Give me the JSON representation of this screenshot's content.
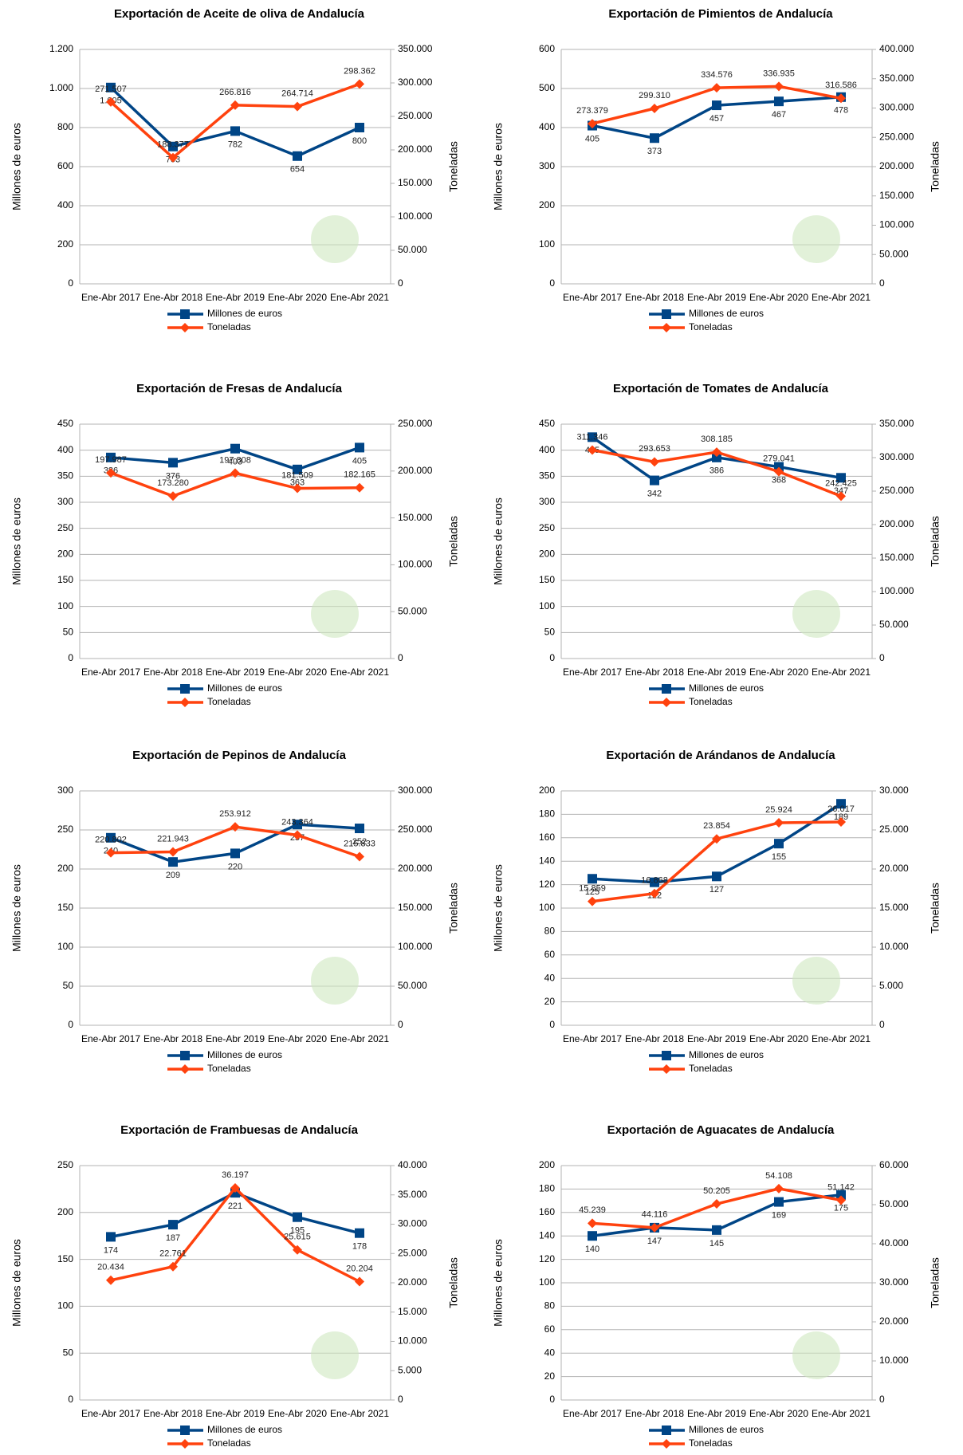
{
  "chart_data": [
    {
      "type": "line",
      "title": "Exportación de Aceite de oliva de Andalucía",
      "ylabel": "Millones de euros",
      "y2label": "Toneladas",
      "categories": [
        "Ene-Abr 2017",
        "Ene-Abr 2018",
        "Ene-Abr 2019",
        "Ene-Abr 2020",
        "Ene-Abr 2021"
      ],
      "ylim": [
        0,
        1200
      ],
      "yticks": [
        0,
        200,
        400,
        600,
        800,
        {
          "value": 1000,
          "label": "1.000"
        },
        {
          "value": 1200,
          "label": "1.200"
        }
      ],
      "y2lim": [
        0,
        350000
      ],
      "y2ticks": [
        0,
        {
          "value": 50000,
          "label": "50.000"
        },
        {
          "value": 100000,
          "label": "100.000"
        },
        {
          "value": 150000,
          "label": "150.000"
        },
        {
          "value": 200000,
          "label": "200.000"
        },
        {
          "value": 250000,
          "label": "250.000"
        },
        {
          "value": 300000,
          "label": "300.000"
        },
        {
          "value": 350000,
          "label": "350.000"
        }
      ],
      "series": [
        {
          "name": "Millones de euros",
          "color": "#004586",
          "values": [
            1005,
            703,
            782,
            654,
            800
          ],
          "value_labels": [
            "1.005",
            "703",
            "782",
            "654",
            "800"
          ]
        },
        {
          "name": "Toneladas",
          "color": "#ff420e",
          "axis": "y2",
          "values": [
            271507,
            188377,
            266816,
            264714,
            298362
          ],
          "value_labels": [
            "271.507",
            "188.377",
            "266.816",
            "264.714",
            "298.362"
          ]
        }
      ]
    },
    {
      "type": "line",
      "title": "Exportación de Pimientos de Andalucía",
      "ylabel": "Millones de euros",
      "y2label": "Toneladas",
      "categories": [
        "Ene-Abr 2017",
        "Ene-Abr 2018",
        "Ene-Abr 2019",
        "Ene-Abr 2020",
        "Ene-Abr 2021"
      ],
      "ylim": [
        0,
        600
      ],
      "yticks": [
        0,
        100,
        200,
        300,
        400,
        500,
        600
      ],
      "y2lim": [
        0,
        400000
      ],
      "y2ticks": [
        0,
        {
          "value": 50000,
          "label": "50.000"
        },
        {
          "value": 100000,
          "label": "100.000"
        },
        {
          "value": 150000,
          "label": "150.000"
        },
        {
          "value": 200000,
          "label": "200.000"
        },
        {
          "value": 250000,
          "label": "250.000"
        },
        {
          "value": 300000,
          "label": "300.000"
        },
        {
          "value": 350000,
          "label": "350.000"
        },
        {
          "value": 400000,
          "label": "400.000"
        }
      ],
      "series": [
        {
          "name": "Millones de euros",
          "color": "#004586",
          "values": [
            405,
            373,
            457,
            467,
            478
          ]
        },
        {
          "name": "Toneladas",
          "color": "#ff420e",
          "axis": "y2",
          "values": [
            273379,
            299310,
            334576,
            336935,
            316586
          ],
          "value_labels": [
            "273.379",
            "299.310",
            "334.576",
            "336.935",
            "316.586"
          ]
        }
      ]
    },
    {
      "type": "line",
      "title": "Exportación de Fresas de Andalucía",
      "ylabel": "Millones de euros",
      "y2label": "Toneladas",
      "categories": [
        "Ene-Abr 2017",
        "Ene-Abr 2018",
        "Ene-Abr 2019",
        "Ene-Abr 2020",
        "Ene-Abr 2021"
      ],
      "ylim": [
        0,
        450
      ],
      "yticks": [
        0,
        50,
        100,
        150,
        200,
        250,
        300,
        350,
        400,
        450
      ],
      "y2lim": [
        0,
        250000
      ],
      "y2ticks": [
        0,
        {
          "value": 50000,
          "label": "50.000"
        },
        {
          "value": 100000,
          "label": "100.000"
        },
        {
          "value": 150000,
          "label": "150.000"
        },
        {
          "value": 200000,
          "label": "200.000"
        },
        {
          "value": 250000,
          "label": "250.000"
        }
      ],
      "series": [
        {
          "name": "Millones de euros",
          "color": "#004586",
          "values": [
            386,
            376,
            403,
            363,
            405
          ]
        },
        {
          "name": "Toneladas",
          "color": "#ff420e",
          "axis": "y2",
          "values": [
            197987,
            173280,
            197808,
            181509,
            182165
          ],
          "value_labels": [
            "197.987",
            "173.280",
            "197.808",
            "181.509",
            "182.165"
          ]
        }
      ]
    },
    {
      "type": "line",
      "title": "Exportación de Tomates de Andalucía",
      "ylabel": "Millones de euros",
      "y2label": "Toneladas",
      "categories": [
        "Ene-Abr 2017",
        "Ene-Abr 2018",
        "Ene-Abr 2019",
        "Ene-Abr 2020",
        "Ene-Abr 2021"
      ],
      "ylim": [
        0,
        450
      ],
      "yticks": [
        0,
        50,
        100,
        150,
        200,
        250,
        300,
        350,
        400,
        450
      ],
      "y2lim": [
        0,
        350000
      ],
      "y2ticks": [
        0,
        {
          "value": 50000,
          "label": "50.000"
        },
        {
          "value": 100000,
          "label": "100.000"
        },
        {
          "value": 150000,
          "label": "150.000"
        },
        {
          "value": 200000,
          "label": "200.000"
        },
        {
          "value": 250000,
          "label": "250.000"
        },
        {
          "value": 300000,
          "label": "300.000"
        },
        {
          "value": 350000,
          "label": "350.000"
        }
      ],
      "series": [
        {
          "name": "Millones de euros",
          "color": "#004586",
          "values": [
            425,
            342,
            386,
            368,
            347
          ]
        },
        {
          "name": "Toneladas",
          "color": "#ff420e",
          "axis": "y2",
          "values": [
            311346,
            293653,
            308185,
            279041,
            242425
          ],
          "value_labels": [
            "311.346",
            "293.653",
            "308.185",
            "279.041",
            "242.425"
          ]
        }
      ]
    },
    {
      "type": "line",
      "title": "Exportación de Pepinos de Andalucía",
      "ylabel": "Millones de euros",
      "y2label": "Toneladas",
      "categories": [
        "Ene-Abr 2017",
        "Ene-Abr 2018",
        "Ene-Abr 2019",
        "Ene-Abr 2020",
        "Ene-Abr 2021"
      ],
      "ylim": [
        0,
        300
      ],
      "yticks": [
        0,
        50,
        100,
        150,
        200,
        250,
        300
      ],
      "y2lim": [
        0,
        300000
      ],
      "y2ticks": [
        0,
        {
          "value": 50000,
          "label": "50.000"
        },
        {
          "value": 100000,
          "label": "100.000"
        },
        {
          "value": 150000,
          "label": "150.000"
        },
        {
          "value": 200000,
          "label": "200.000"
        },
        {
          "value": 250000,
          "label": "250.000"
        },
        {
          "value": 300000,
          "label": "300.000"
        }
      ],
      "series": [
        {
          "name": "Millones de euros",
          "color": "#004586",
          "values": [
            240,
            209,
            220,
            257,
            252
          ]
        },
        {
          "name": "Toneladas",
          "color": "#ff420e",
          "axis": "y2",
          "values": [
            220802,
            221943,
            253912,
            243364,
            215833
          ],
          "value_labels": [
            "220.802",
            "221.943",
            "253.912",
            "243.364",
            "215.833"
          ]
        }
      ]
    },
    {
      "type": "line",
      "title": "Exportación de Arándanos de Andalucía",
      "ylabel": "Millones de euros",
      "y2label": "Toneladas",
      "categories": [
        "Ene-Abr 2017",
        "Ene-Abr 2018",
        "Ene-Abr 2019",
        "Ene-Abr 2020",
        "Ene-Abr 2021"
      ],
      "ylim": [
        0,
        200
      ],
      "yticks": [
        0,
        20,
        40,
        60,
        80,
        100,
        120,
        140,
        160,
        180,
        200
      ],
      "y2lim": [
        0,
        30000
      ],
      "y2ticks": [
        0,
        {
          "value": 5000,
          "label": "5.000"
        },
        {
          "value": 10000,
          "label": "10.000"
        },
        {
          "value": 15000,
          "label": "15.000"
        },
        {
          "value": 20000,
          "label": "20.000"
        },
        {
          "value": 25000,
          "label": "25.000"
        },
        {
          "value": 30000,
          "label": "30.000"
        }
      ],
      "series": [
        {
          "name": "Millones de euros",
          "color": "#004586",
          "values": [
            125,
            122,
            127,
            155,
            189
          ]
        },
        {
          "name": "Toneladas",
          "color": "#ff420e",
          "axis": "y2",
          "values": [
            15859,
            16868,
            23854,
            25924,
            26017
          ],
          "value_labels": [
            "15.859",
            "16.868",
            "23.854",
            "25.924",
            "26.017"
          ]
        }
      ]
    },
    {
      "type": "line",
      "title": "Exportación de Frambuesas de Andalucía",
      "ylabel": "Millones de euros",
      "y2label": "Toneladas",
      "categories": [
        "Ene-Abr 2017",
        "Ene-Abr 2018",
        "Ene-Abr 2019",
        "Ene-Abr 2020",
        "Ene-Abr 2021"
      ],
      "ylim": [
        0,
        250
      ],
      "yticks": [
        0,
        50,
        100,
        150,
        200,
        250
      ],
      "y2lim": [
        0,
        40000
      ],
      "y2ticks": [
        0,
        {
          "value": 5000,
          "label": "5.000"
        },
        {
          "value": 10000,
          "label": "10.000"
        },
        {
          "value": 15000,
          "label": "15.000"
        },
        {
          "value": 20000,
          "label": "20.000"
        },
        {
          "value": 25000,
          "label": "25.000"
        },
        {
          "value": 30000,
          "label": "30.000"
        },
        {
          "value": 35000,
          "label": "35.000"
        },
        {
          "value": 40000,
          "label": "40.000"
        }
      ],
      "series": [
        {
          "name": "Millones de euros",
          "color": "#004586",
          "values": [
            174,
            187,
            221,
            195,
            178
          ]
        },
        {
          "name": "Toneladas",
          "color": "#ff420e",
          "axis": "y2",
          "values": [
            20434,
            22761,
            36197,
            25615,
            20204
          ],
          "value_labels": [
            "20.434",
            "22.761",
            "36.197",
            "25.615",
            "20.204"
          ]
        }
      ]
    },
    {
      "type": "line",
      "title": "Exportación de Aguacates de Andalucía",
      "ylabel": "Millones de euros",
      "y2label": "Toneladas",
      "categories": [
        "Ene-Abr 2017",
        "Ene-Abr 2018",
        "Ene-Abr 2019",
        "Ene-Abr 2020",
        "Ene-Abr 2021"
      ],
      "ylim": [
        0,
        200
      ],
      "yticks": [
        0,
        20,
        40,
        60,
        80,
        100,
        120,
        140,
        160,
        180,
        200
      ],
      "y2lim": [
        0,
        60000
      ],
      "y2ticks": [
        0,
        {
          "value": 10000,
          "label": "10.000"
        },
        {
          "value": 20000,
          "label": "20.000"
        },
        {
          "value": 30000,
          "label": "30.000"
        },
        {
          "value": 40000,
          "label": "40.000"
        },
        {
          "value": 50000,
          "label": "50.000"
        },
        {
          "value": 60000,
          "label": "60.000"
        }
      ],
      "series": [
        {
          "name": "Millones de euros",
          "color": "#004586",
          "values": [
            140,
            147,
            145,
            169,
            175
          ]
        },
        {
          "name": "Toneladas",
          "color": "#ff420e",
          "axis": "y2",
          "values": [
            45239,
            44116,
            50205,
            54108,
            51142
          ],
          "value_labels": [
            "45.239",
            "44.116",
            "50.205",
            "54.108",
            "51.142"
          ]
        }
      ]
    }
  ]
}
